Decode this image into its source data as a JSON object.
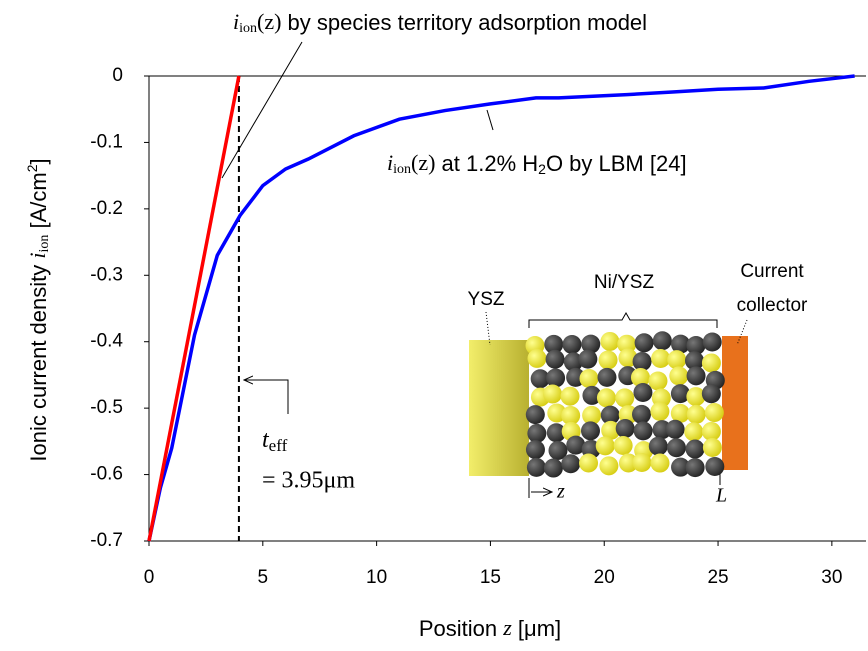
{
  "chart_data": {
    "type": "line",
    "xlim": [
      0,
      31.5
    ],
    "xticks": [
      0,
      5,
      10,
      15,
      20,
      25,
      30
    ],
    "ylim": [
      -0.7,
      0
    ],
    "yticks": [
      0,
      -0.1,
      -0.2,
      -0.3,
      -0.4,
      -0.5,
      -0.6,
      -0.7
    ],
    "x_label": [
      "Position ",
      "z",
      " [μm]"
    ],
    "y_label": [
      "Ionic current density ",
      "i",
      "ion",
      " [A/cm",
      "2",
      "]"
    ],
    "series": [
      {
        "color": "#0000ff",
        "x": [
          0,
          0.5,
          1,
          2,
          3,
          4,
          5,
          6,
          7,
          9,
          11,
          13,
          15,
          17,
          18,
          21,
          23,
          25,
          27,
          29,
          31
        ],
        "values": [
          -0.7,
          -0.62,
          -0.56,
          -0.39,
          -0.27,
          -0.21,
          -0.165,
          -0.14,
          -0.125,
          -0.09,
          -0.065,
          -0.052,
          -0.042,
          -0.033,
          -0.033,
          -0.028,
          -0.024,
          -0.02,
          -0.018,
          -0.008,
          0
        ]
      },
      {
        "color": "#ff0000",
        "x": [
          0,
          3.95
        ],
        "values": [
          -0.7,
          0
        ]
      }
    ],
    "annotations": {
      "model": [
        "i",
        "ion",
        "(z)",
        " by species territory adsorption model"
      ],
      "lbm": [
        "i",
        "ion",
        "(z)",
        " at 1.2% H",
        "2",
        "O by LBM [24]"
      ],
      "t_eff": [
        "t",
        "eff",
        "= 3.95μm"
      ]
    },
    "inset": {
      "ysz": "YSZ",
      "niysz": "Ni/YSZ",
      "collector": [
        "Current",
        "collector"
      ],
      "z": "z",
      "L": "L"
    }
  }
}
